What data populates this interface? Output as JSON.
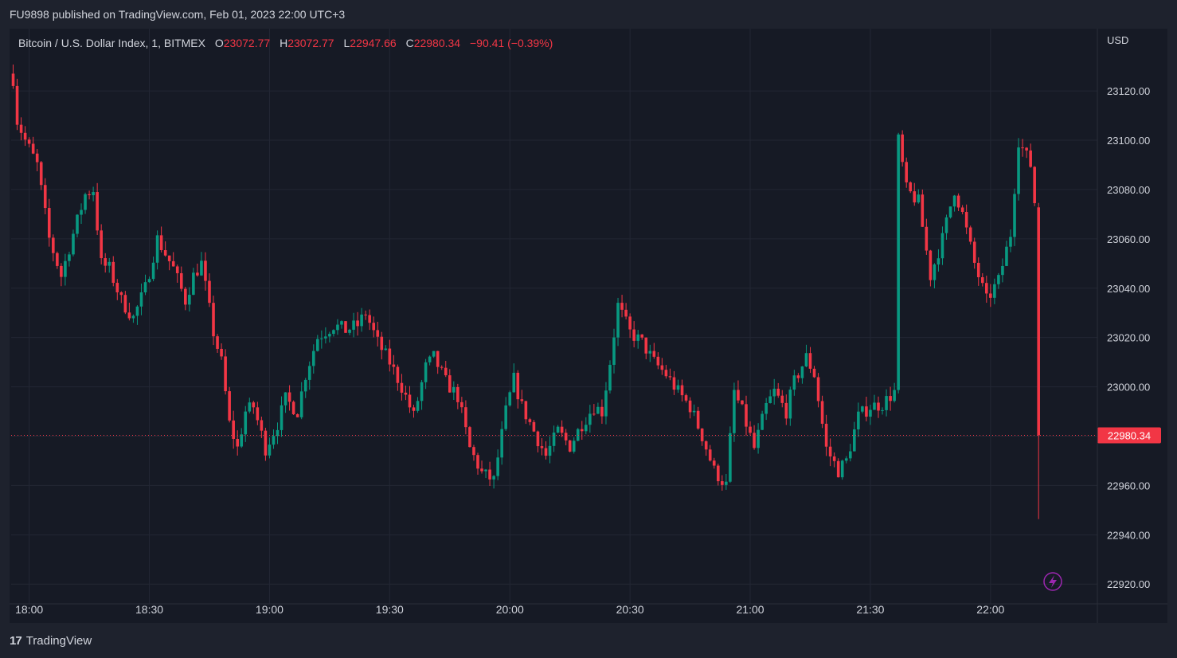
{
  "header": {
    "published_text": "FU9898 published on TradingView.com, Feb 01, 2023 22:00 UTC+3"
  },
  "legend": {
    "symbol": "Bitcoin / U.S. Dollar Index, 1, BITMEX",
    "open_label": "O",
    "open": "23072.77",
    "high_label": "H",
    "high": "23072.77",
    "low_label": "L",
    "low": "22947.66",
    "close_label": "C",
    "close": "22980.34",
    "change": "−90.41 (−0.39%)"
  },
  "axis": {
    "currency": "USD",
    "price_ticks": [
      "23120.00",
      "23100.00",
      "23080.00",
      "23060.00",
      "23040.00",
      "23020.00",
      "23000.00",
      "22980.00",
      "22960.00",
      "22940.00",
      "22920.00"
    ],
    "last_price_label": "22980.34",
    "time_ticks": [
      "18:00",
      "18:30",
      "19:00",
      "19:30",
      "20:00",
      "20:30",
      "21:00",
      "21:30",
      "22:00"
    ]
  },
  "brand": {
    "logo_mark": "17",
    "name": "TradingView"
  },
  "colors": {
    "up": "#089981",
    "down": "#f23645",
    "background": "#161a25",
    "grid": "#232734",
    "text": "#d1d4dc",
    "last_price_line": "#f23645",
    "alert_icon": "#9c27b0"
  },
  "icons": {
    "alert": "lightning-icon"
  },
  "chart_data": {
    "type": "candlestick",
    "symbol": "Bitcoin / U.S. Dollar Index",
    "interval": "1",
    "exchange": "BITMEX",
    "ylim": [
      22912,
      23142
    ],
    "price_ticks": [
      22920,
      22940,
      22960,
      22980,
      23000,
      23020,
      23040,
      23060,
      23080,
      23100,
      23120
    ],
    "time_ticks": [
      "18:00",
      "18:30",
      "19:00",
      "19:30",
      "20:00",
      "20:30",
      "21:00",
      "21:30",
      "22:00"
    ],
    "last_price": 22980.34,
    "grid": true,
    "waypoints_note_free": true,
    "path": [
      [
        0,
        23125
      ],
      [
        1,
        23108
      ],
      [
        3,
        23100
      ],
      [
        6,
        23090
      ],
      [
        9,
        23060
      ],
      [
        12,
        23045
      ],
      [
        15,
        23062
      ],
      [
        18,
        23078
      ],
      [
        20,
        23080
      ],
      [
        22,
        23050
      ],
      [
        24,
        23048
      ],
      [
        27,
        23035
      ],
      [
        30,
        23028
      ],
      [
        33,
        23040
      ],
      [
        36,
        23060
      ],
      [
        40,
        23048
      ],
      [
        43,
        23035
      ],
      [
        45,
        23045
      ],
      [
        47,
        23050
      ],
      [
        50,
        23022
      ],
      [
        52,
        23010
      ],
      [
        54,
        22985
      ],
      [
        56,
        22975
      ],
      [
        58,
        22990
      ],
      [
        60,
        22992
      ],
      [
        63,
        22975
      ],
      [
        66,
        22985
      ],
      [
        68,
        22995
      ],
      [
        71,
        22990
      ],
      [
        73,
        23005
      ],
      [
        76,
        23020
      ],
      [
        80,
        23025
      ],
      [
        83,
        23023
      ],
      [
        86,
        23025
      ],
      [
        88,
        23030
      ],
      [
        91,
        23018
      ],
      [
        94,
        23010
      ],
      [
        97,
        23000
      ],
      [
        100,
        22988
      ],
      [
        103,
        23008
      ],
      [
        105,
        23012
      ],
      [
        108,
        23002
      ],
      [
        111,
        22996
      ],
      [
        114,
        22975
      ],
      [
        117,
        22965
      ],
      [
        120,
        22962
      ],
      [
        123,
        22990
      ],
      [
        125,
        23003
      ],
      [
        127,
        22992
      ],
      [
        130,
        22982
      ],
      [
        133,
        22972
      ],
      [
        136,
        22982
      ],
      [
        139,
        22976
      ],
      [
        142,
        22985
      ],
      [
        145,
        22992
      ],
      [
        147,
        22990
      ],
      [
        149,
        23010
      ],
      [
        151,
        23033
      ],
      [
        154,
        23022
      ],
      [
        157,
        23018
      ],
      [
        160,
        23010
      ],
      [
        163,
        23005
      ],
      [
        166,
        22998
      ],
      [
        169,
        22992
      ],
      [
        172,
        22980
      ],
      [
        175,
        22966
      ],
      [
        178,
        22960
      ],
      [
        180,
        22998
      ],
      [
        182,
        22990
      ],
      [
        185,
        22975
      ],
      [
        188,
        22992
      ],
      [
        190,
        22998
      ],
      [
        193,
        22990
      ],
      [
        195,
        23002
      ],
      [
        198,
        23012
      ],
      [
        200,
        23005
      ],
      [
        203,
        22975
      ],
      [
        206,
        22966
      ],
      [
        208,
        22970
      ],
      [
        211,
        22988
      ],
      [
        214,
        22992
      ],
      [
        217,
        22993
      ],
      [
        220,
        22998
      ],
      [
        221,
        23100
      ],
      [
        223,
        23080
      ],
      [
        226,
        23075
      ],
      [
        229,
        23045
      ],
      [
        232,
        23060
      ],
      [
        235,
        23080
      ],
      [
        237,
        23070
      ],
      [
        240,
        23050
      ],
      [
        243,
        23035
      ],
      [
        246,
        23043
      ],
      [
        249,
        23062
      ],
      [
        251,
        23100
      ],
      [
        254,
        23090
      ],
      [
        255,
        23075
      ],
      [
        256,
        22980.34
      ]
    ]
  }
}
